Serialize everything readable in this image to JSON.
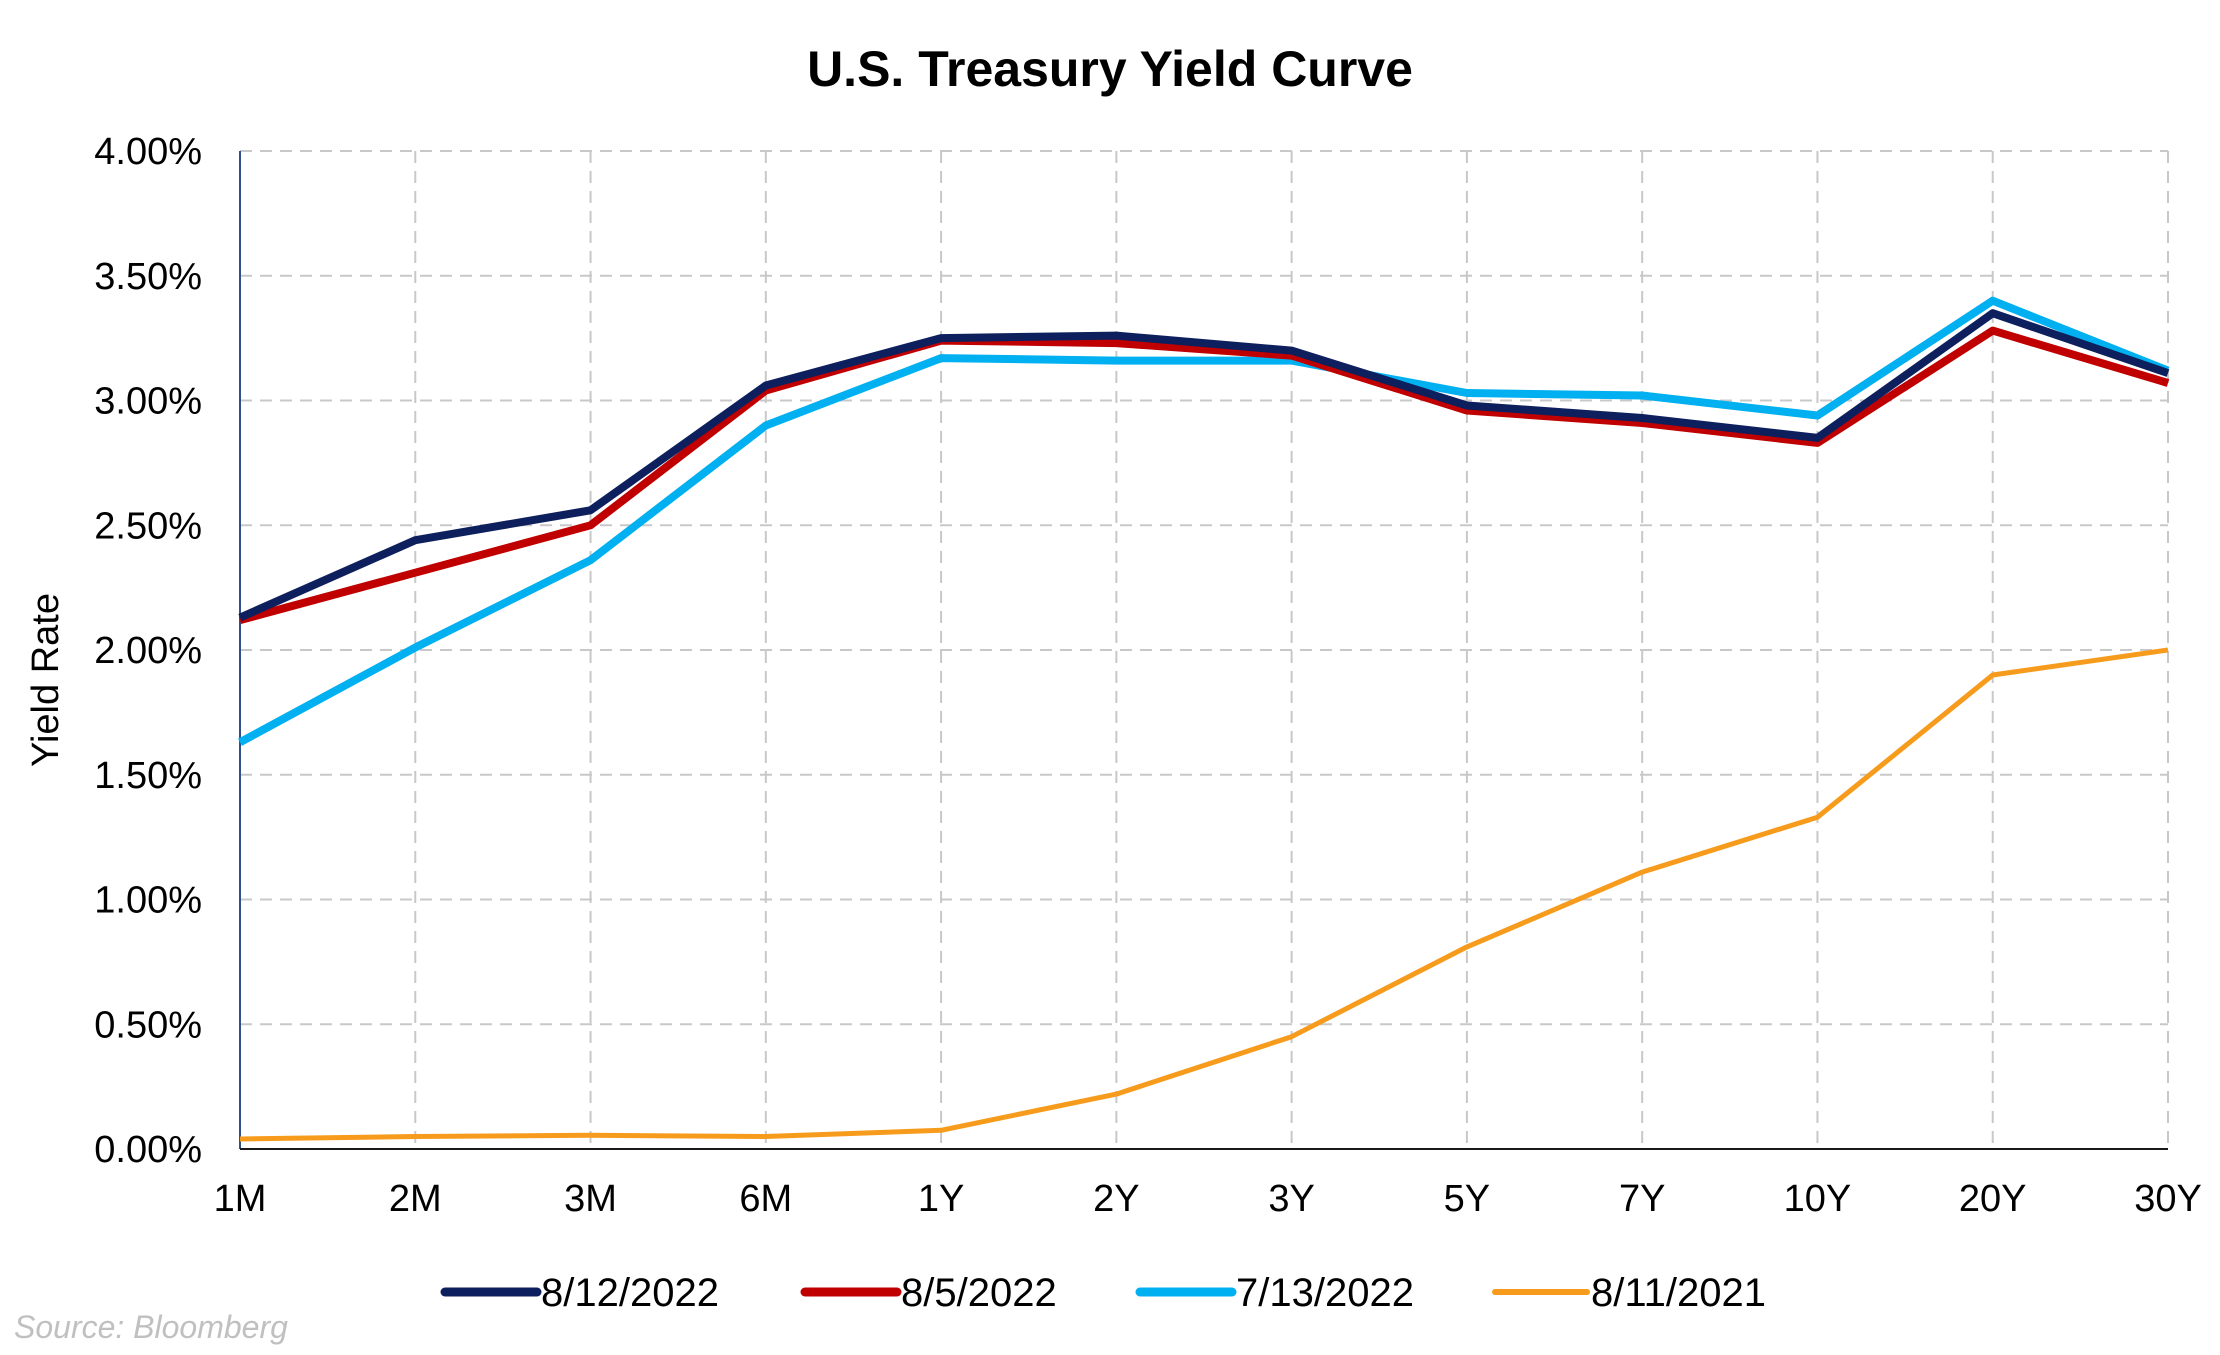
{
  "chart_data": {
    "type": "line",
    "title": "U.S. Treasury Yield Curve",
    "xlabel": "",
    "ylabel": "Yield Rate",
    "categories": [
      "1M",
      "2M",
      "3M",
      "6M",
      "1Y",
      "2Y",
      "3Y",
      "5Y",
      "7Y",
      "10Y",
      "20Y",
      "30Y"
    ],
    "ylim": [
      0,
      4
    ],
    "yticks": [
      "0.00%",
      "0.50%",
      "1.00%",
      "1.50%",
      "2.00%",
      "2.50%",
      "3.00%",
      "3.50%",
      "4.00%"
    ],
    "grid": true,
    "legend_position": "bottom",
    "series": [
      {
        "name": "8/12/2022",
        "color": "#0d1f5c",
        "values": [
          2.13,
          2.44,
          2.56,
          3.06,
          3.25,
          3.26,
          3.2,
          2.98,
          2.93,
          2.85,
          3.35,
          3.11
        ]
      },
      {
        "name": "8/5/2022",
        "color": "#c00000",
        "values": [
          2.12,
          2.31,
          2.5,
          3.04,
          3.24,
          3.23,
          3.18,
          2.96,
          2.91,
          2.83,
          3.28,
          3.07
        ]
      },
      {
        "name": "7/13/2022",
        "color": "#00b0f0",
        "values": [
          1.63,
          2.01,
          2.36,
          2.9,
          3.17,
          3.16,
          3.16,
          3.03,
          3.02,
          2.94,
          3.4,
          3.12
        ]
      },
      {
        "name": "8/11/2021",
        "color": "#f79b1c",
        "values": [
          0.04,
          0.05,
          0.055,
          0.05,
          0.075,
          0.22,
          0.45,
          0.81,
          1.11,
          1.33,
          1.9,
          2.0
        ]
      }
    ]
  },
  "source": "Source: Bloomberg"
}
